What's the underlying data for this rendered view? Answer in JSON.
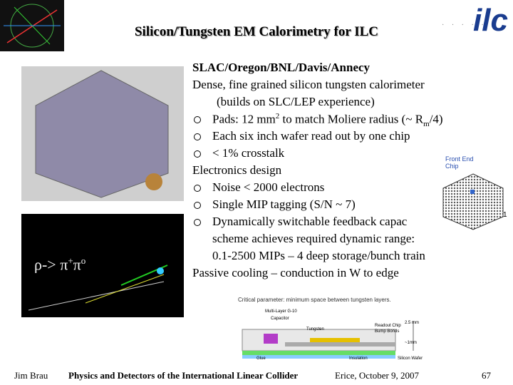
{
  "header": {
    "title": "Silicon/Tungsten EM Calorimetry for ILC",
    "logo": "ilc"
  },
  "body": [
    [
      "SLAC/Oregon/BNL/Davis/Annecy"
    ],
    [
      "Dense, fine grained silicon tungsten calorimeter"
    ],
    [
      "(builds on SLC/LEP experience)"
    ],
    [
      "Pads: 12 mm",
      "2",
      " to match Moliere radius (~ R",
      "m",
      "/4)"
    ],
    [
      "Each six inch wafer read out by one chip"
    ],
    [
      "< 1% crosstalk"
    ],
    [
      "Electronics design"
    ],
    [
      "Noise < 2000 electrons"
    ],
    [
      "Single MIP tagging (S/N ~ 7)"
    ],
    [
      "Dynamically switchable feedback capac"
    ],
    [
      "scheme achieves required dynamic range:"
    ],
    [
      "0.1-2500 MIPs – 4 deep storage/bunch train"
    ],
    [
      "Passive cooling – conduction in W to edge"
    ]
  ],
  "event_label": [
    "ρ-> π",
    "+",
    "π",
    "o"
  ],
  "chip_figure": {
    "label": "Front End Chip",
    "number": "1"
  },
  "layer_figure": {
    "caption": "Critical parameter: minimum space between tungsten layers.",
    "labels": [
      "Multi-Layer G-10",
      "Capacitor",
      "Tungsten",
      "Readout Chip",
      "Bump Bonds",
      "2.5 mm",
      "~1mm",
      "Glue",
      "Insulation",
      "Silicon Wafer"
    ]
  },
  "footer": {
    "author": "Jim Brau",
    "course": "Physics and Detectors of the International Linear Collider",
    "place_date": "Erice, October 9, 2007",
    "page": "67"
  }
}
